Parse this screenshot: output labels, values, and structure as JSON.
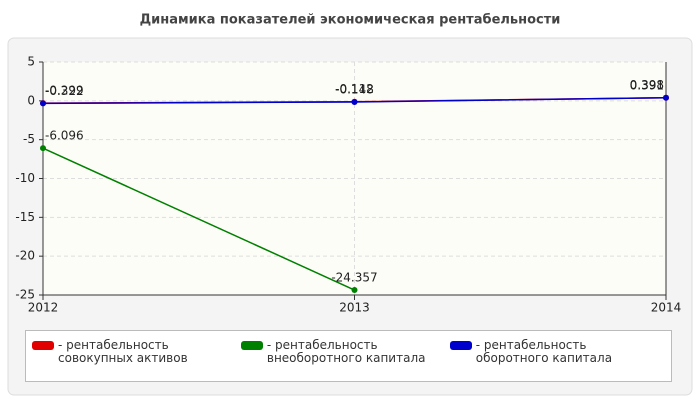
{
  "chart_data": {
    "type": "line",
    "title": "Динамика показателей экономическая рентабельности",
    "categories": [
      "2012",
      "2013",
      "2014"
    ],
    "series": [
      {
        "name": "рентабельность совокупных активов",
        "color": "#e00000",
        "values": [
          -0.299,
          -0.112,
          0.391
        ]
      },
      {
        "name": "рентабельность внеоборотного капитала",
        "color": "#008000",
        "values": [
          -6.096,
          -24.357,
          null
        ]
      },
      {
        "name": "рентабельность оборотного капитала",
        "color": "#0000cc",
        "values": [
          -0.322,
          -0.148,
          0.398
        ]
      }
    ],
    "ylim": [
      -25,
      5
    ],
    "yticks": [
      -25,
      -20,
      -15,
      -10,
      -5,
      0,
      5
    ],
    "grid": true
  }
}
